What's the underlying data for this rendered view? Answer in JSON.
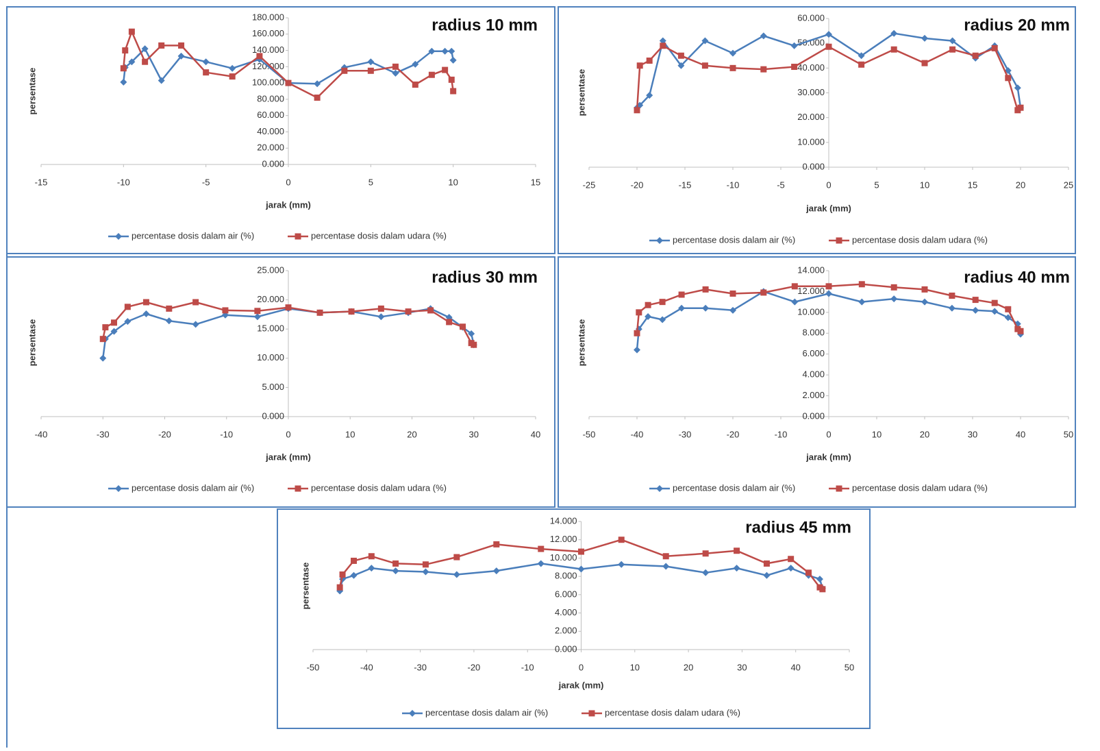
{
  "chart_data": [
    {
      "type": "line",
      "title": "radius 10 mm",
      "x_label": "jarak (mm)",
      "y_label": "persentase",
      "legend": "bottom",
      "xlim": [
        -15,
        15
      ],
      "xticks": [
        -15,
        -10,
        -5,
        0,
        5,
        10,
        15
      ],
      "ylim": [
        0,
        180
      ],
      "yticks": [
        {
          "value": 0,
          "label": "0.000"
        },
        {
          "value": 20,
          "label": "20.000"
        },
        {
          "value": 40,
          "label": "40.000"
        },
        {
          "value": 60,
          "label": "60.000"
        },
        {
          "value": 80,
          "label": "80.000"
        },
        {
          "value": 100,
          "label": "100.000"
        },
        {
          "value": 120,
          "label": "120.000"
        },
        {
          "value": 140,
          "label": "140.000"
        },
        {
          "value": 160,
          "label": "160.000"
        },
        {
          "value": 180,
          "label": "180.000"
        }
      ],
      "series": [
        {
          "name": "percentase dosis dalam air (%)",
          "color": "#4a7ebb",
          "marker": "diamond",
          "x": [
            -10,
            -9.9,
            -9.5,
            -8.7,
            -7.7,
            -6.5,
            -5,
            -3.4,
            -1.75,
            0,
            1.75,
            3.4,
            5,
            6.5,
            7.7,
            8.7,
            9.5,
            9.9,
            10
          ],
          "values": [
            101,
            119,
            126,
            142,
            103,
            133,
            126,
            118,
            129,
            100,
            99,
            119,
            126,
            112,
            123,
            139,
            139,
            139,
            128
          ]
        },
        {
          "name": "percentase dosis dalam udara (%)",
          "color": "#be4b48",
          "marker": "square",
          "x": [
            -10,
            -9.9,
            -9.5,
            -8.7,
            -7.7,
            -6.5,
            -5,
            -3.4,
            -1.75,
            0,
            1.75,
            3.4,
            5,
            6.5,
            7.7,
            8.7,
            9.5,
            9.9,
            10
          ],
          "values": [
            118,
            140,
            163,
            126,
            146,
            146,
            113,
            108,
            133,
            100,
            82,
            115,
            115,
            120,
            98,
            110,
            116,
            104,
            90
          ]
        }
      ]
    },
    {
      "type": "line",
      "title": "radius 20 mm",
      "x_label": "jarak (mm)",
      "y_label": "persentase",
      "legend": "bottom",
      "xlim": [
        -25,
        25
      ],
      "xticks": [
        -25,
        -20,
        -15,
        -10,
        -5,
        0,
        5,
        10,
        15,
        20,
        25
      ],
      "ylim": [
        0,
        60
      ],
      "yticks": [
        {
          "value": 0,
          "label": "0.000"
        },
        {
          "value": 10,
          "label": "10.000"
        },
        {
          "value": 20,
          "label": "20.000"
        },
        {
          "value": 30,
          "label": "30.000"
        },
        {
          "value": 40,
          "label": "40.000"
        },
        {
          "value": 50,
          "label": "50.000"
        },
        {
          "value": 60,
          "label": "60.000"
        }
      ],
      "series": [
        {
          "name": "percentase dosis dalam air (%)",
          "color": "#4a7ebb",
          "marker": "diamond",
          "x": [
            -20,
            -19.7,
            -18.7,
            -17.3,
            -15.4,
            -12.9,
            -10,
            -6.8,
            -3.6,
            0,
            3.4,
            6.8,
            10,
            12.9,
            15.3,
            17.3,
            18.7,
            19.7,
            20
          ],
          "values": [
            24,
            25,
            29,
            51,
            41,
            51,
            46,
            53,
            49,
            53.6,
            45,
            54,
            52,
            51,
            44,
            49,
            39,
            32,
            24
          ]
        },
        {
          "name": "percentase dosis dalam udara (%)",
          "color": "#be4b48",
          "marker": "square",
          "x": [
            -20,
            -19.7,
            -18.7,
            -17.3,
            -15.4,
            -12.9,
            -10,
            -6.8,
            -3.6,
            0,
            3.4,
            6.8,
            10,
            12.9,
            15.3,
            17.3,
            18.7,
            19.7,
            20
          ],
          "values": [
            23,
            41,
            43,
            49,
            45,
            41,
            40,
            39.5,
            40.5,
            48.6,
            41.4,
            47.5,
            42,
            47.5,
            45,
            48,
            36,
            23,
            24
          ]
        }
      ]
    },
    {
      "type": "line",
      "title": "radius 30 mm",
      "x_label": "jarak (mm)",
      "y_label": "persentase",
      "legend": "bottom",
      "xlim": [
        -40,
        40
      ],
      "xticks": [
        -40,
        -30,
        -20,
        -10,
        0,
        10,
        20,
        30,
        40
      ],
      "ylim": [
        0,
        25
      ],
      "yticks": [
        {
          "value": 0,
          "label": "0.000"
        },
        {
          "value": 5,
          "label": "5.000"
        },
        {
          "value": 10,
          "label": "10.000"
        },
        {
          "value": 15,
          "label": "15.000"
        },
        {
          "value": 20,
          "label": "20.000"
        },
        {
          "value": 25,
          "label": "25.000"
        }
      ],
      "series": [
        {
          "name": "percentase dosis dalam air (%)",
          "color": "#4a7ebb",
          "marker": "diamond",
          "x": [
            -30,
            -29.6,
            -28.2,
            -26,
            -23,
            -19.3,
            -15,
            -10.2,
            -5,
            0,
            5.1,
            10.2,
            15,
            19.4,
            23,
            26,
            28.2,
            29.6,
            30
          ],
          "values": [
            10,
            13.3,
            14.6,
            16.3,
            17.6,
            16.4,
            15.8,
            17.4,
            17.1,
            18.5,
            17.8,
            18,
            17.1,
            17.8,
            18.5,
            17,
            15.3,
            14.2,
            12.3
          ]
        },
        {
          "name": "percentase dosis dalam udara (%)",
          "color": "#be4b48",
          "marker": "square",
          "x": [
            -30,
            -29.6,
            -28.2,
            -26,
            -23,
            -19.3,
            -15,
            -10.2,
            -5,
            0,
            5.1,
            10.2,
            15,
            19.4,
            23,
            26,
            28.2,
            29.6,
            30
          ],
          "values": [
            13.3,
            15.3,
            16.1,
            18.8,
            19.6,
            18.5,
            19.6,
            18.2,
            18.1,
            18.7,
            17.8,
            18,
            18.5,
            18,
            18.2,
            16.2,
            15.4,
            12.6,
            12.3
          ]
        }
      ]
    },
    {
      "type": "line",
      "title": "radius 40 mm",
      "x_label": "jarak (mm)",
      "y_label": "persentase",
      "legend": "bottom",
      "xlim": [
        -50,
        50
      ],
      "xticks": [
        -50,
        -40,
        -30,
        -20,
        -10,
        0,
        10,
        20,
        30,
        40,
        50
      ],
      "ylim": [
        0,
        14
      ],
      "yticks": [
        {
          "value": 0,
          "label": "0.000"
        },
        {
          "value": 2,
          "label": "2.000"
        },
        {
          "value": 4,
          "label": "4.000"
        },
        {
          "value": 6,
          "label": "6.000"
        },
        {
          "value": 8,
          "label": "8.000"
        },
        {
          "value": 10,
          "label": "10.000"
        },
        {
          "value": 12,
          "label": "12.000"
        },
        {
          "value": 14,
          "label": "14.000"
        }
      ],
      "series": [
        {
          "name": "percentase dosis dalam air (%)",
          "color": "#4a7ebb",
          "marker": "diamond",
          "x": [
            -40,
            -39.6,
            -37.7,
            -34.7,
            -30.7,
            -25.7,
            -20,
            -13.6,
            -7.1,
            0,
            6.9,
            13.6,
            20,
            25.7,
            30.6,
            34.6,
            37.4,
            39.4,
            40
          ],
          "values": [
            6.4,
            8.4,
            9.6,
            9.3,
            10.4,
            10.4,
            10.2,
            12,
            11,
            11.8,
            11,
            11.3,
            11,
            10.4,
            10.2,
            10.1,
            9.5,
            8.9,
            7.9
          ]
        },
        {
          "name": "percentase dosis dalam udara (%)",
          "color": "#be4b48",
          "marker": "square",
          "x": [
            -40,
            -39.6,
            -37.7,
            -34.7,
            -30.7,
            -25.7,
            -20,
            -13.6,
            -7.1,
            0,
            6.9,
            13.6,
            20,
            25.7,
            30.6,
            34.6,
            37.4,
            39.4,
            40
          ],
          "values": [
            8,
            10,
            10.7,
            11,
            11.7,
            12.2,
            11.8,
            11.9,
            12.5,
            12.5,
            12.7,
            12.4,
            12.2,
            11.6,
            11.2,
            10.9,
            10.3,
            8.4,
            8.2
          ]
        }
      ]
    },
    {
      "type": "line",
      "title": "radius 45 mm",
      "x_label": "jarak (mm)",
      "y_label": "persentase",
      "legend": "bottom",
      "xlim": [
        -50,
        50
      ],
      "xticks": [
        -50,
        -40,
        -30,
        -20,
        -10,
        0,
        10,
        20,
        30,
        40,
        50
      ],
      "ylim": [
        0,
        14
      ],
      "yticks": [
        {
          "value": 0,
          "label": "0.000"
        },
        {
          "value": 2,
          "label": "2.000"
        },
        {
          "value": 4,
          "label": "4.000"
        },
        {
          "value": 6,
          "label": "6.000"
        },
        {
          "value": 8,
          "label": "8.000"
        },
        {
          "value": 10,
          "label": "10.000"
        },
        {
          "value": 12,
          "label": "12.000"
        },
        {
          "value": 14,
          "label": "14.000"
        }
      ],
      "series": [
        {
          "name": "percentase dosis dalam air (%)",
          "color": "#4a7ebb",
          "marker": "diamond",
          "x": [
            -45,
            -44.5,
            -42.4,
            -39.1,
            -34.6,
            -29,
            -23.2,
            -15.8,
            -7.5,
            0,
            7.5,
            15.8,
            23.2,
            29,
            34.6,
            39.1,
            42.4,
            44.5,
            45
          ],
          "values": [
            6.4,
            7.7,
            8.1,
            8.9,
            8.6,
            8.5,
            8.2,
            8.6,
            9.4,
            8.8,
            9.3,
            9.1,
            8.4,
            8.9,
            8.1,
            8.9,
            8.1,
            7.7,
            6.7
          ]
        },
        {
          "name": "percentase dosis dalam udara (%)",
          "color": "#be4b48",
          "marker": "square",
          "x": [
            -45,
            -44.5,
            -42.4,
            -39.1,
            -34.6,
            -29,
            -23.2,
            -15.8,
            -7.5,
            0,
            7.5,
            15.8,
            23.2,
            29,
            34.6,
            39.1,
            42.4,
            44.5,
            45
          ],
          "values": [
            6.8,
            8.2,
            9.7,
            10.2,
            9.4,
            9.3,
            10.1,
            11.5,
            11,
            10.7,
            12,
            10.2,
            10.5,
            10.8,
            9.4,
            9.9,
            8.4,
            6.8,
            6.6
          ]
        }
      ]
    }
  ]
}
